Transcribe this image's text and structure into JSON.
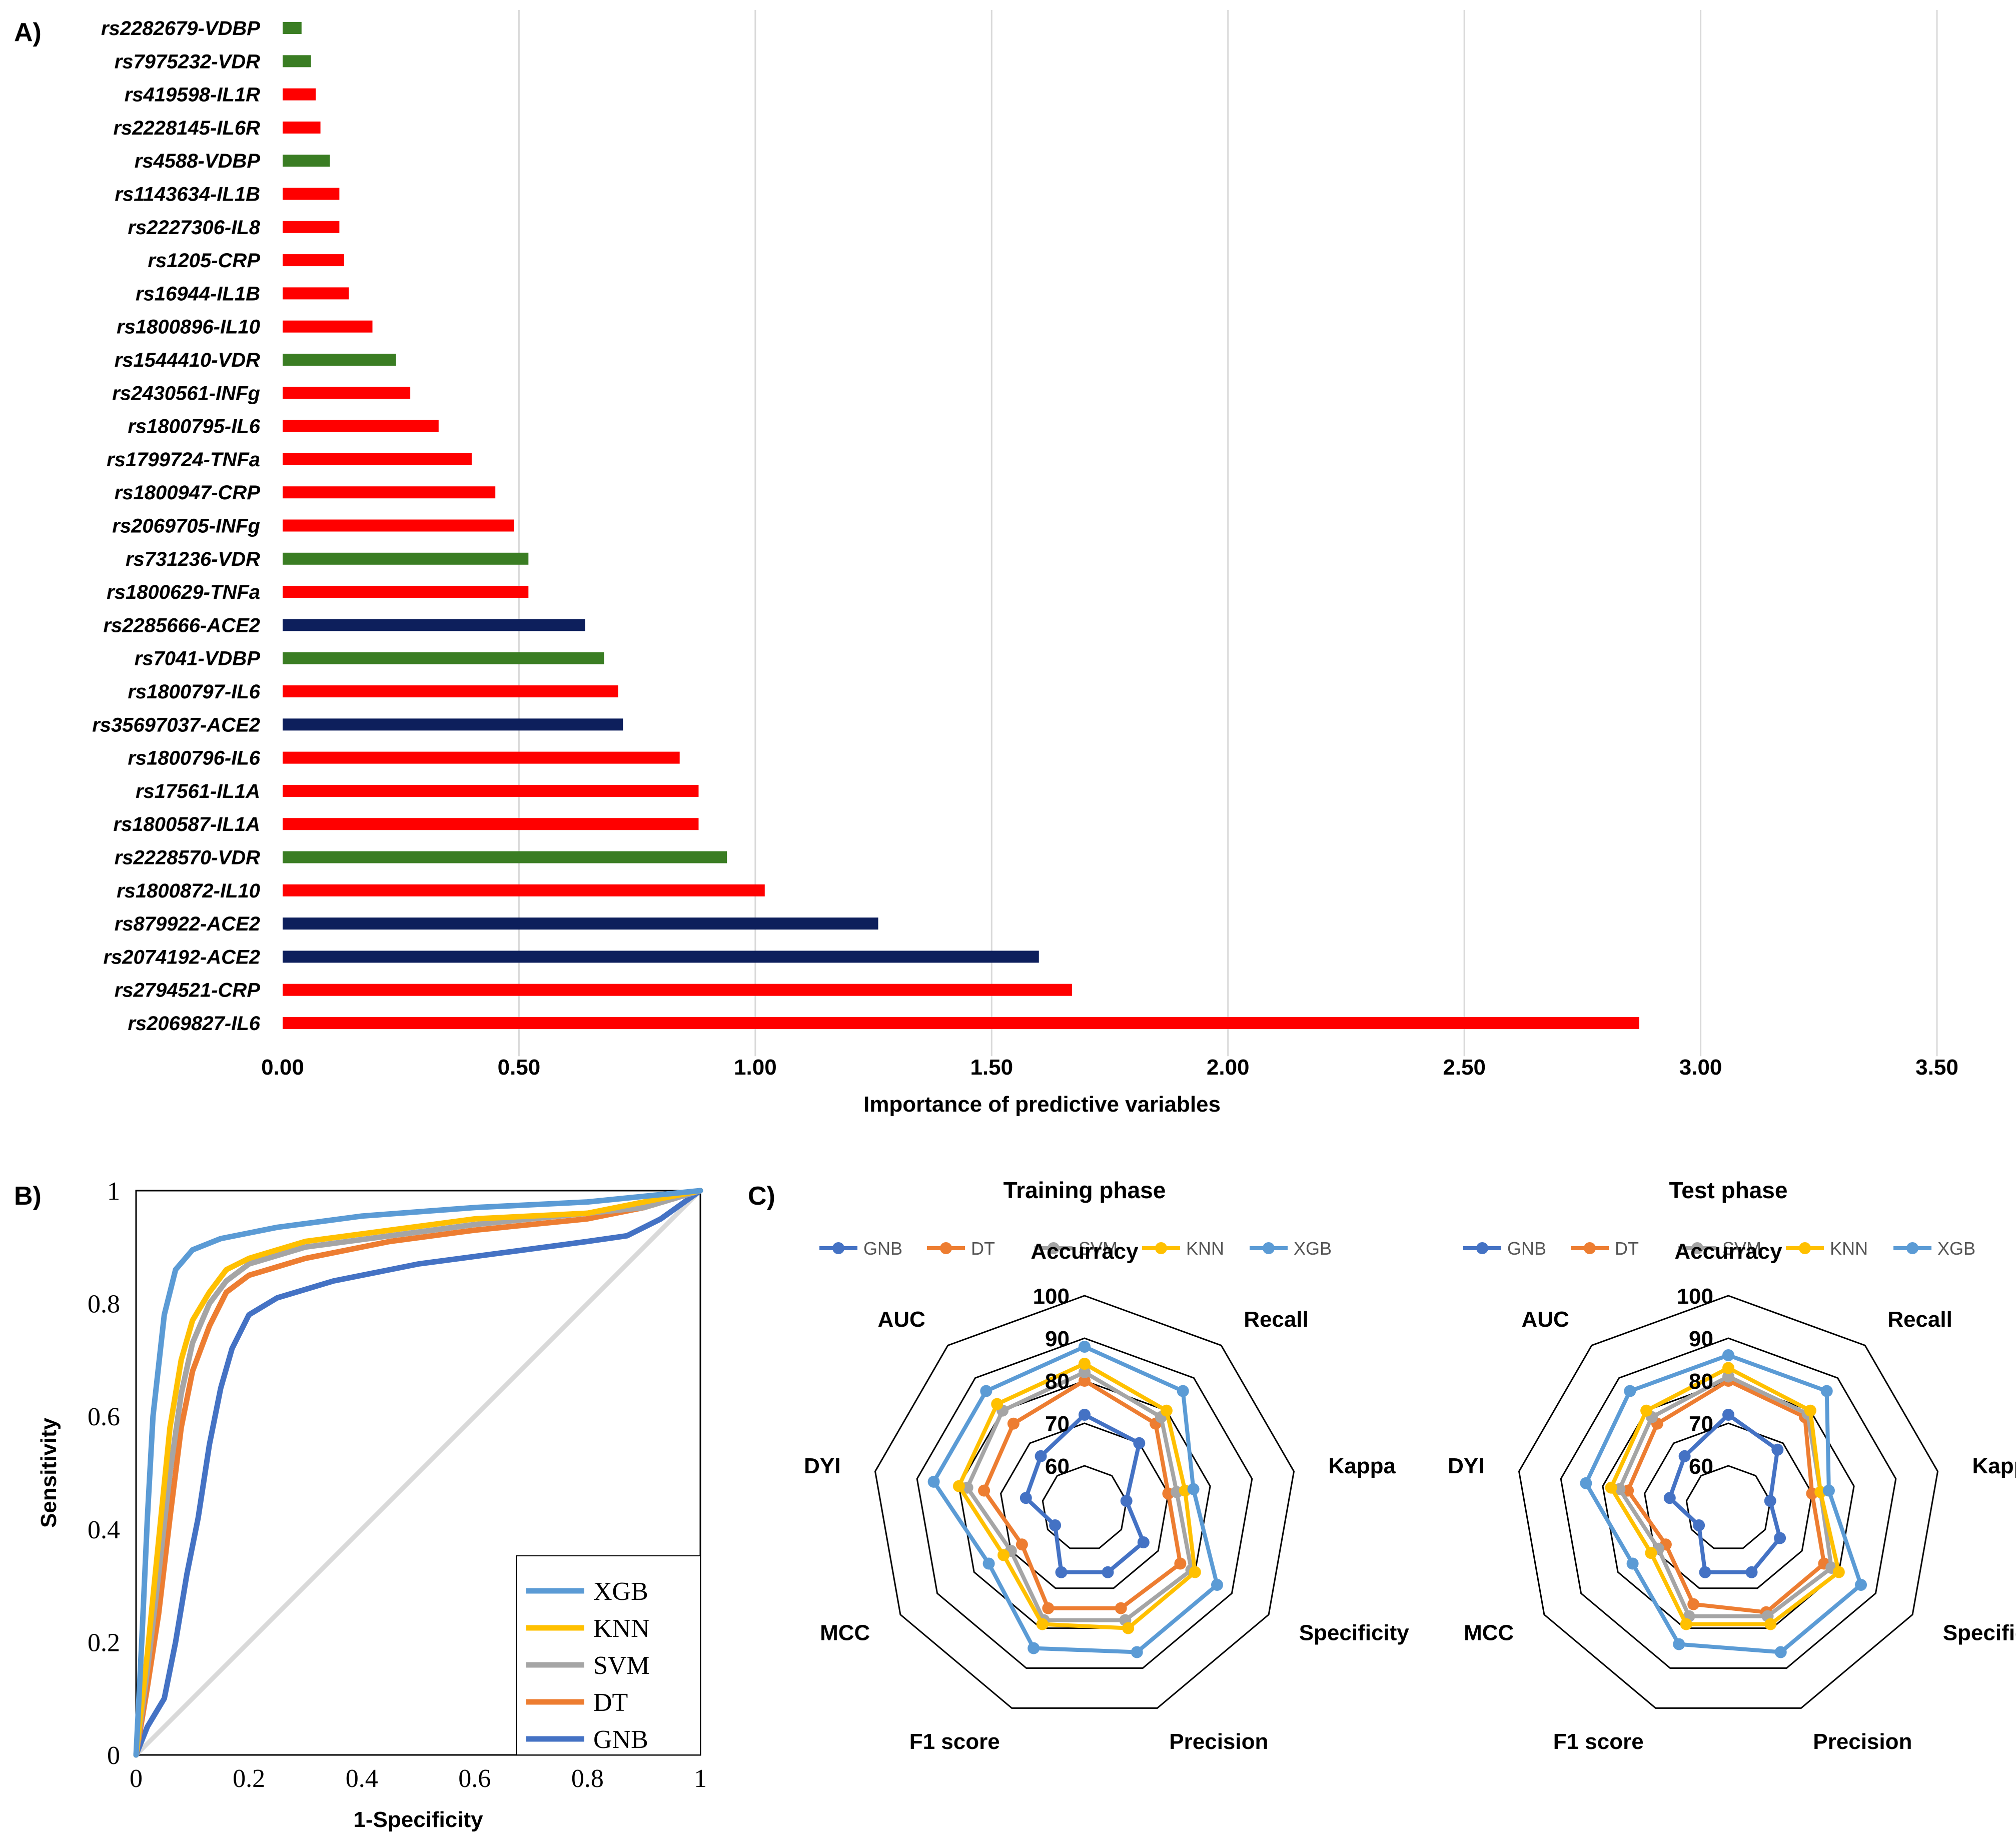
{
  "panels": {
    "a": {
      "label": "A)"
    },
    "b": {
      "label": "B)"
    },
    "c": {
      "label": "C)"
    }
  },
  "colors": {
    "red": "#ff0000",
    "green": "#3a7d23",
    "navy": "#0d1f5c",
    "gnb": "#4472c4",
    "dt": "#ed7d31",
    "svm": "#a5a5a5",
    "knn": "#ffc000",
    "xgb": "#5b9bd5",
    "diagonal": "#d9d9d9",
    "grid": "#d9d9d9"
  },
  "chart_data": [
    {
      "id": "importance",
      "type": "bar",
      "orientation": "horizontal",
      "title": "",
      "xlabel": "Importance of predictive variables",
      "ylabel": "",
      "xlim": [
        0,
        3.5
      ],
      "xticks": [
        0,
        0.5,
        1.0,
        1.5,
        2.0,
        2.5,
        3.0,
        3.5
      ],
      "xtick_labels": [
        "0.00",
        "0.50",
        "1.00",
        "1.50",
        "2.00",
        "2.50",
        "3.00",
        "3.50"
      ],
      "grid": "vertical",
      "categories": [
        "rs2282679-VDBP",
        "rs7975232-VDR",
        "rs419598-IL1R",
        "rs2228145-IL6R",
        "rs4588-VDBP",
        "rs1143634-IL1B",
        "rs2227306-IL8",
        "rs1205-CRP",
        "rs16944-IL1B",
        "rs1800896-IL10",
        "rs1544410-VDR",
        "rs2430561-INFg",
        "rs1800795-IL6",
        "rs1799724-TNFa",
        "rs1800947-CRP",
        "rs2069705-INFg",
        "rs731236-VDR",
        "rs1800629-TNFa",
        "rs2285666-ACE2",
        "rs7041-VDBP",
        "rs1800797-IL6",
        "rs35697037-ACE2",
        "rs1800796-IL6",
        "rs17561-IL1A",
        "rs1800587-IL1A",
        "rs2228570-VDR",
        "rs1800872-IL10",
        "rs879922-ACE2",
        "rs2074192-ACE2",
        "rs2794521-CRP",
        "rs2069827-IL6"
      ],
      "values": [
        0.04,
        0.06,
        0.07,
        0.08,
        0.1,
        0.12,
        0.12,
        0.13,
        0.14,
        0.19,
        0.24,
        0.27,
        0.33,
        0.4,
        0.45,
        0.49,
        0.52,
        0.52,
        0.64,
        0.68,
        0.71,
        0.72,
        0.84,
        0.88,
        0.88,
        0.94,
        1.02,
        1.26,
        1.6,
        1.67,
        2.87
      ],
      "bar_groups": [
        "green",
        "green",
        "red",
        "red",
        "green",
        "red",
        "red",
        "red",
        "red",
        "red",
        "green",
        "red",
        "red",
        "red",
        "red",
        "red",
        "green",
        "red",
        "navy",
        "green",
        "red",
        "navy",
        "red",
        "red",
        "red",
        "green",
        "red",
        "navy",
        "navy",
        "red",
        "red"
      ]
    },
    {
      "id": "roc",
      "type": "line",
      "title": "",
      "xlabel": "1-Specificity",
      "ylabel": "Sensitivity",
      "xlim": [
        0,
        1
      ],
      "ylim": [
        0,
        1
      ],
      "xticks": [
        0,
        0.2,
        0.4,
        0.6,
        0.8,
        1
      ],
      "xtick_labels": [
        "0",
        "0.2",
        "0.4",
        "0.6",
        "0.8",
        "1"
      ],
      "yticks": [
        0,
        0.2,
        0.4,
        0.6,
        0.8,
        1
      ],
      "ytick_labels": [
        "0",
        "0.2",
        "0.4",
        "0.6",
        "0.8",
        "1"
      ],
      "legend_position": "bottom-right",
      "diagonal": [
        [
          0,
          0
        ],
        [
          1,
          1
        ]
      ],
      "series": [
        {
          "name": "GNB",
          "color_key": "gnb",
          "x": [
            0,
            0.02,
            0.05,
            0.07,
            0.09,
            0.11,
            0.13,
            0.15,
            0.17,
            0.2,
            0.25,
            0.35,
            0.5,
            0.65,
            0.8,
            0.87,
            0.93,
            1.0
          ],
          "y": [
            0,
            0.05,
            0.1,
            0.2,
            0.32,
            0.42,
            0.55,
            0.65,
            0.72,
            0.78,
            0.81,
            0.84,
            0.87,
            0.89,
            0.91,
            0.92,
            0.95,
            1.0
          ]
        },
        {
          "name": "DT",
          "color_key": "dt",
          "x": [
            0,
            0.02,
            0.04,
            0.06,
            0.08,
            0.1,
            0.13,
            0.16,
            0.2,
            0.3,
            0.45,
            0.6,
            0.8,
            0.9,
            1.0
          ],
          "y": [
            0,
            0.12,
            0.25,
            0.42,
            0.58,
            0.68,
            0.76,
            0.82,
            0.85,
            0.88,
            0.91,
            0.93,
            0.95,
            0.97,
            1.0
          ]
        },
        {
          "name": "SVM",
          "color_key": "svm",
          "x": [
            0,
            0.02,
            0.04,
            0.06,
            0.08,
            0.1,
            0.13,
            0.16,
            0.2,
            0.3,
            0.45,
            0.6,
            0.8,
            0.9,
            1.0
          ],
          "y": [
            0,
            0.15,
            0.32,
            0.5,
            0.64,
            0.73,
            0.8,
            0.84,
            0.87,
            0.9,
            0.92,
            0.94,
            0.96,
            0.97,
            1.0
          ]
        },
        {
          "name": "KNN",
          "color_key": "knn",
          "x": [
            0,
            0.02,
            0.04,
            0.06,
            0.08,
            0.1,
            0.13,
            0.16,
            0.2,
            0.3,
            0.45,
            0.6,
            0.8,
            0.9,
            1.0
          ],
          "y": [
            0,
            0.18,
            0.38,
            0.58,
            0.7,
            0.77,
            0.82,
            0.86,
            0.88,
            0.91,
            0.93,
            0.95,
            0.96,
            0.98,
            1.0
          ]
        },
        {
          "name": "XGB",
          "color_key": "xgb",
          "x": [
            0,
            0.01,
            0.02,
            0.03,
            0.05,
            0.07,
            0.1,
            0.15,
            0.25,
            0.4,
            0.6,
            0.8,
            1.0
          ],
          "y": [
            0,
            0.2,
            0.42,
            0.6,
            0.78,
            0.86,
            0.895,
            0.915,
            0.935,
            0.955,
            0.97,
            0.98,
            1.0
          ]
        }
      ]
    },
    {
      "id": "radar-training",
      "type": "radar",
      "title": "Training phase",
      "axes": [
        "Accurracy",
        "Recall",
        "Kappa",
        "Specificity",
        "Precision",
        "F1 score",
        "MCC",
        "DYI",
        "AUC"
      ],
      "rmin": 50,
      "rmax": 100,
      "rings": [
        60,
        70,
        80,
        90,
        100
      ],
      "ring_labels": [
        "60",
        "70",
        "80",
        "90",
        "100"
      ],
      "legend_position": "top",
      "series": [
        {
          "name": "GNB",
          "color_key": "gnb",
          "values": [
            72,
            70,
            60,
            66,
            66,
            66,
            58,
            64,
            66
          ]
        },
        {
          "name": "DT",
          "color_key": "dt",
          "values": [
            80,
            76,
            70,
            76,
            75,
            75,
            67,
            74,
            76
          ]
        },
        {
          "name": "SVM",
          "color_key": "svm",
          "values": [
            82,
            78,
            72,
            79,
            78,
            78,
            70,
            78,
            80
          ]
        },
        {
          "name": "KNN",
          "color_key": "knn",
          "values": [
            84,
            80,
            74,
            80,
            80,
            79,
            72,
            80,
            82
          ]
        },
        {
          "name": "XGB",
          "color_key": "xgb",
          "values": [
            88,
            86,
            76,
            86,
            86,
            85,
            76,
            86,
            86
          ]
        }
      ]
    },
    {
      "id": "radar-test",
      "type": "radar",
      "title": "Test phase",
      "axes": [
        "Accurracy",
        "Recall",
        "Kappa",
        "Specificity",
        "Precision",
        "F1 score",
        "MCC",
        "DYI",
        "AUC"
      ],
      "rmin": 50,
      "rmax": 100,
      "rings": [
        60,
        70,
        80,
        90,
        100
      ],
      "ring_labels": [
        "60",
        "70",
        "80",
        "90",
        "100"
      ],
      "legend_position": "top",
      "series": [
        {
          "name": "GNB",
          "color_key": "gnb",
          "values": [
            72,
            68,
            60,
            64,
            66,
            66,
            58,
            64,
            66
          ]
        },
        {
          "name": "DT",
          "color_key": "dt",
          "values": [
            80,
            78,
            70,
            76,
            76,
            74,
            67,
            74,
            76
          ]
        },
        {
          "name": "SVM",
          "color_key": "svm",
          "values": [
            81,
            79,
            72,
            78,
            77,
            77,
            69,
            76,
            78
          ]
        },
        {
          "name": "KNN",
          "color_key": "knn",
          "values": [
            83,
            80,
            72,
            80,
            79,
            79,
            71,
            78,
            80
          ]
        },
        {
          "name": "XGB",
          "color_key": "xgb",
          "values": [
            86,
            86,
            74,
            86,
            86,
            84,
            76,
            84,
            86
          ]
        }
      ]
    }
  ]
}
